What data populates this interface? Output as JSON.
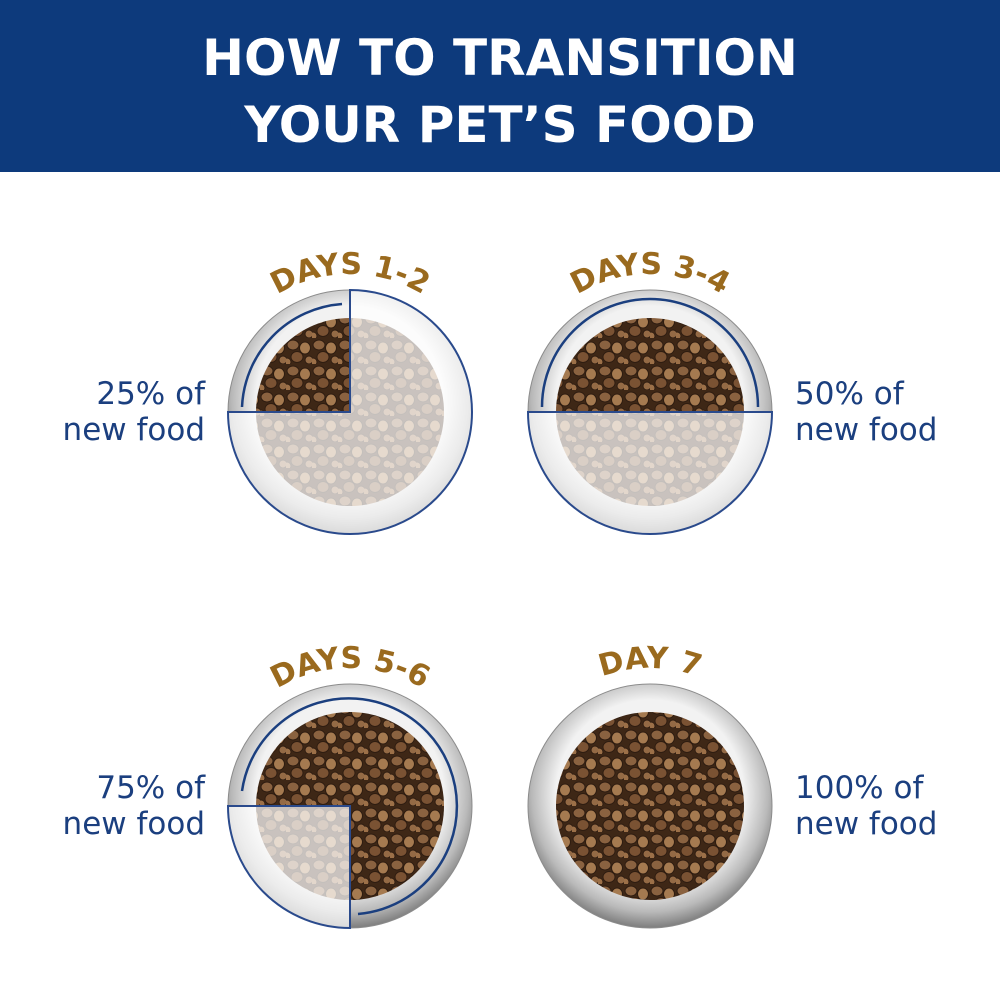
{
  "header": {
    "title_lines": [
      "HOW TO TRANSITION",
      "YOUR PET’S FOOD"
    ]
  },
  "steps": [
    {
      "label": "DAYS 1-2",
      "caption_lines": [
        "25% of",
        "new food"
      ]
    },
    {
      "label": "DAYS 3-4",
      "caption_lines": [
        "50% of",
        "new food"
      ]
    },
    {
      "label": "DAYS 5-6",
      "caption_lines": [
        "75% of",
        "new food"
      ]
    },
    {
      "label": "DAY 7",
      "caption_lines": [
        "100% of",
        "new food"
      ]
    }
  ]
}
